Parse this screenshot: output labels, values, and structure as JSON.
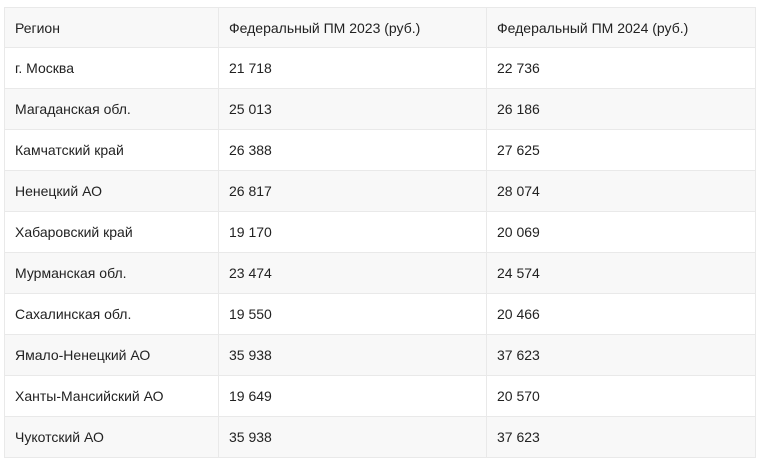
{
  "table": {
    "headers": [
      "Регион",
      "Федеральный ПМ 2023 (руб.)",
      "Федеральный ПМ 2024 (руб.)"
    ],
    "rows": [
      [
        "г. Москва",
        "21 718",
        "22 736"
      ],
      [
        "Магаданская обл.",
        "25 013",
        "26 186"
      ],
      [
        "Камчатский край",
        "26 388",
        "27 625"
      ],
      [
        "Ненецкий АО",
        "26 817",
        "28 074"
      ],
      [
        "Хабаровский край",
        "19 170",
        "20 069"
      ],
      [
        "Мурманская обл.",
        "23 474",
        "24 574"
      ],
      [
        "Сахалинская обл.",
        "19 550",
        "20 466"
      ],
      [
        "Ямало-Ненецкий АО",
        "35 938",
        "37 623"
      ],
      [
        "Ханты-Мансийский АО",
        "19 649",
        "20 570"
      ],
      [
        "Чукотский АО",
        "35 938",
        "37 623"
      ]
    ]
  }
}
